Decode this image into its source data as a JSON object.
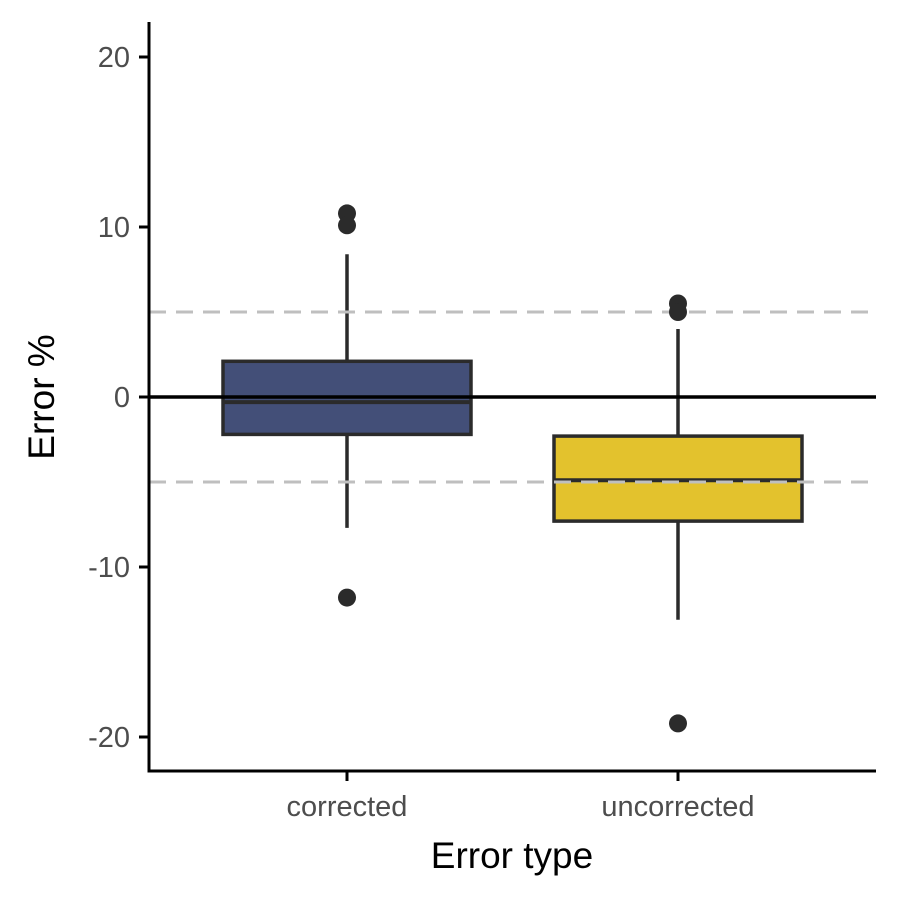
{
  "chart_data": {
    "type": "boxplot",
    "title": "",
    "xlabel": "Error type",
    "ylabel": "Error %",
    "ylim": [
      -22,
      22
    ],
    "yticks": [
      20,
      10,
      0,
      -10,
      -20
    ],
    "ytick_labels": [
      "20",
      "10",
      "0",
      "-10",
      "-20"
    ],
    "categories": [
      "corrected",
      "uncorrected"
    ],
    "boxes": [
      {
        "category": "corrected",
        "fill": "#434f78",
        "whisker_low": -7.7,
        "q1": -2.2,
        "median": -0.3,
        "q3": 2.1,
        "whisker_high": 8.4,
        "outliers": [
          10.8,
          10.1,
          -11.8
        ]
      },
      {
        "category": "uncorrected",
        "fill": "#e3c22d",
        "whisker_low": -13.1,
        "q1": -7.3,
        "median": -4.9,
        "q3": -2.3,
        "whisker_high": 4.0,
        "outliers": [
          5.5,
          5.0,
          -19.2
        ]
      }
    ],
    "reference_lines": [
      {
        "y": 0,
        "style": "solid",
        "color": "#000000"
      },
      {
        "y": 5,
        "style": "dashed",
        "color": "#bfbfbf"
      },
      {
        "y": -5,
        "style": "dashed",
        "color": "#bfbfbf"
      }
    ],
    "grid": false,
    "legend": "none",
    "box_stroke_color": "#2b2b2b",
    "point_color": "#2b2b2b"
  }
}
